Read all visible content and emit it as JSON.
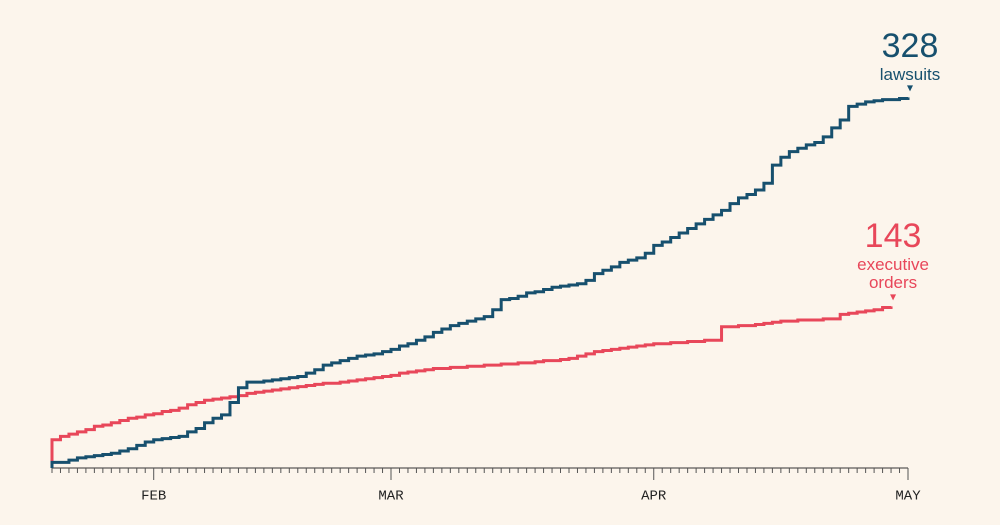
{
  "chart_data": {
    "type": "step",
    "categories": [
      null,
      null,
      null,
      null,
      null,
      null,
      null,
      null,
      null,
      null,
      null,
      null,
      "FEB",
      null,
      null,
      null,
      null,
      null,
      null,
      null,
      null,
      null,
      null,
      null,
      null,
      null,
      null,
      null,
      null,
      null,
      null,
      null,
      null,
      null,
      null,
      null,
      null,
      null,
      null,
      null,
      "MAR",
      null,
      null,
      null,
      null,
      null,
      null,
      null,
      null,
      null,
      null,
      null,
      null,
      null,
      null,
      null,
      null,
      null,
      null,
      null,
      null,
      null,
      null,
      null,
      null,
      null,
      null,
      null,
      null,
      null,
      null,
      "APR",
      null,
      null,
      null,
      null,
      null,
      null,
      null,
      null,
      null,
      null,
      null,
      null,
      null,
      null,
      null,
      null,
      null,
      null,
      null,
      null,
      null,
      null,
      null,
      null,
      null,
      null,
      null,
      null,
      null,
      "MAY"
    ],
    "ylim": [
      0,
      400
    ],
    "series": [
      {
        "name": "lawsuits",
        "color": "#17506e",
        "values": [
          5,
          5,
          7,
          9,
          10,
          11,
          12,
          13,
          15,
          17,
          20,
          23,
          25,
          26,
          27,
          28,
          32,
          35,
          40,
          44,
          47,
          58,
          71,
          76,
          76,
          77,
          78,
          79,
          80,
          81,
          84,
          87,
          91,
          93,
          95,
          97,
          99,
          100,
          101,
          103,
          105,
          108,
          110,
          113,
          116,
          120,
          123,
          126,
          128,
          130,
          132,
          134,
          140,
          149,
          150,
          152,
          155,
          156,
          158,
          160,
          161,
          162,
          163,
          166,
          172,
          175,
          178,
          182,
          184,
          186,
          190,
          197,
          200,
          204,
          208,
          212,
          216,
          220,
          224,
          228,
          234,
          239,
          242,
          246,
          252,
          268,
          275,
          280,
          283,
          286,
          288,
          293,
          301,
          308,
          320,
          322,
          324,
          325,
          326,
          326,
          327,
          328
        ]
      },
      {
        "name": "executive orders",
        "color": "#e8475a",
        "values": [
          25,
          28,
          30,
          32,
          34,
          37,
          38,
          40,
          42,
          44,
          45,
          47,
          48,
          50,
          51,
          53,
          56,
          58,
          60,
          61,
          62,
          63,
          64,
          66,
          67,
          68,
          69,
          70,
          71,
          72,
          73,
          74,
          75,
          75,
          76,
          77,
          78,
          79,
          80,
          81,
          82,
          84,
          85,
          86,
          87,
          88,
          88,
          89,
          89,
          90,
          90,
          91,
          91,
          92,
          92,
          93,
          93,
          94,
          95,
          95,
          96,
          97,
          99,
          101,
          103,
          104,
          105,
          106,
          107,
          108,
          109,
          110,
          110,
          111,
          111,
          112,
          112,
          113,
          113,
          125,
          125,
          126,
          126,
          127,
          128,
          129,
          130,
          130,
          131,
          131,
          131,
          132,
          132,
          136,
          137,
          138,
          139,
          140,
          142,
          143,
          null,
          null
        ]
      }
    ]
  }
}
